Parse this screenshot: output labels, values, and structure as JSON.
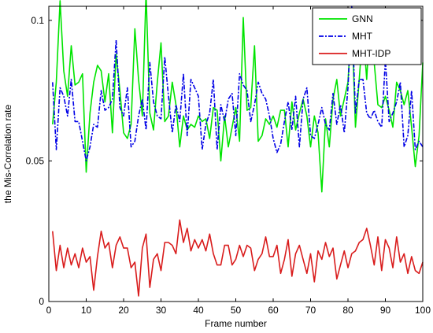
{
  "chart_data": {
    "type": "line",
    "xlabel": "Frame number",
    "ylabel": "the Mis-Correlation rate",
    "xlim": [
      0,
      100
    ],
    "ylim": [
      0,
      0.105
    ],
    "xticks": [
      0,
      10,
      20,
      30,
      40,
      50,
      60,
      70,
      80,
      90,
      100
    ],
    "xtick_labels": [
      "0",
      "10",
      "20",
      "30",
      "40",
      "50",
      "60",
      "70",
      "80",
      "90",
      "100"
    ],
    "yticks": [
      0,
      0.05,
      0.1
    ],
    "ytick_labels": [
      "0",
      "0.05",
      "0.1"
    ],
    "legend_position": "top-right",
    "grid": false,
    "x": [
      1,
      2,
      3,
      4,
      5,
      6,
      7,
      8,
      9,
      10,
      11,
      12,
      13,
      14,
      15,
      16,
      17,
      18,
      19,
      20,
      21,
      22,
      23,
      24,
      25,
      26,
      27,
      28,
      29,
      30,
      31,
      32,
      33,
      34,
      35,
      36,
      37,
      38,
      39,
      40,
      41,
      42,
      43,
      44,
      45,
      46,
      47,
      48,
      49,
      50,
      51,
      52,
      53,
      54,
      55,
      56,
      57,
      58,
      59,
      60,
      61,
      62,
      63,
      64,
      65,
      66,
      67,
      68,
      69,
      70,
      71,
      72,
      73,
      74,
      75,
      76,
      77,
      78,
      79,
      80,
      81,
      82,
      83,
      84,
      85,
      86,
      87,
      88,
      89,
      90,
      91,
      92,
      93,
      94,
      95,
      96,
      97,
      98,
      99,
      100
    ],
    "series": [
      {
        "name": "GNN",
        "color": "#00e400",
        "style": "solid",
        "values": [
          0.063,
          0.078,
          0.107,
          0.082,
          0.073,
          0.091,
          0.077,
          0.078,
          0.081,
          0.046,
          0.067,
          0.078,
          0.084,
          0.082,
          0.071,
          0.081,
          0.06,
          0.088,
          0.075,
          0.06,
          0.058,
          0.063,
          0.097,
          0.079,
          0.066,
          0.11,
          0.067,
          0.061,
          0.078,
          0.092,
          0.064,
          0.066,
          0.078,
          0.07,
          0.055,
          0.066,
          0.061,
          0.063,
          0.062,
          0.066,
          0.064,
          0.065,
          0.058,
          0.069,
          0.068,
          0.05,
          0.066,
          0.055,
          0.062,
          0.069,
          0.057,
          0.101,
          0.068,
          0.069,
          0.091,
          0.057,
          0.059,
          0.065,
          0.063,
          0.066,
          0.062,
          0.068,
          0.068,
          0.055,
          0.071,
          0.061,
          0.067,
          0.072,
          0.066,
          0.055,
          0.066,
          0.06,
          0.039,
          0.065,
          0.055,
          0.072,
          0.079,
          0.066,
          0.072,
          0.078,
          0.101,
          0.062,
          0.079,
          0.097,
          0.079,
          0.103,
          0.085,
          0.07,
          0.069,
          0.073,
          0.068,
          0.062,
          0.078,
          0.075,
          0.07,
          0.075,
          0.062,
          0.048,
          0.059,
          0.085
        ]
      },
      {
        "name": "MHT",
        "color": "#0000e6",
        "style": "dashdot",
        "values": [
          0.078,
          0.054,
          0.076,
          0.073,
          0.066,
          0.079,
          0.064,
          0.064,
          0.057,
          0.05,
          0.055,
          0.063,
          0.062,
          0.075,
          0.068,
          0.069,
          0.072,
          0.093,
          0.069,
          0.066,
          0.076,
          0.055,
          0.057,
          0.066,
          0.072,
          0.061,
          0.085,
          0.071,
          0.066,
          0.065,
          0.087,
          0.073,
          0.06,
          0.07,
          0.064,
          0.081,
          0.059,
          0.079,
          0.076,
          0.073,
          0.054,
          0.063,
          0.067,
          0.079,
          0.054,
          0.07,
          0.064,
          0.072,
          0.074,
          0.059,
          0.081,
          0.077,
          0.075,
          0.064,
          0.07,
          0.078,
          0.074,
          0.072,
          0.066,
          0.058,
          0.053,
          0.056,
          0.064,
          0.071,
          0.061,
          0.073,
          0.055,
          0.072,
          0.076,
          0.059,
          0.058,
          0.063,
          0.069,
          0.063,
          0.061,
          0.074,
          0.063,
          0.07,
          0.06,
          0.076,
          0.105,
          0.067,
          0.079,
          0.079,
          0.067,
          0.065,
          0.068,
          0.064,
          0.062,
          0.086,
          0.064,
          0.067,
          0.071,
          0.078,
          0.055,
          0.059,
          0.075,
          0.054,
          0.057,
          0.055
        ]
      },
      {
        "name": "MHT-IDP",
        "color": "#d91c1c",
        "style": "solid",
        "values": [
          0.025,
          0.011,
          0.02,
          0.012,
          0.019,
          0.013,
          0.017,
          0.012,
          0.019,
          0.014,
          0.016,
          0.004,
          0.016,
          0.025,
          0.019,
          0.021,
          0.012,
          0.02,
          0.023,
          0.019,
          0.019,
          0.012,
          0.014,
          0.002,
          0.019,
          0.024,
          0.005,
          0.015,
          0.017,
          0.011,
          0.021,
          0.021,
          0.02,
          0.017,
          0.029,
          0.021,
          0.026,
          0.018,
          0.022,
          0.019,
          0.022,
          0.018,
          0.024,
          0.017,
          0.013,
          0.013,
          0.02,
          0.02,
          0.013,
          0.015,
          0.02,
          0.016,
          0.02,
          0.019,
          0.011,
          0.015,
          0.017,
          0.023,
          0.016,
          0.016,
          0.02,
          0.01,
          0.015,
          0.022,
          0.009,
          0.017,
          0.02,
          0.015,
          0.01,
          0.017,
          0.007,
          0.018,
          0.015,
          0.021,
          0.016,
          0.019,
          0.008,
          0.013,
          0.018,
          0.012,
          0.017,
          0.018,
          0.021,
          0.022,
          0.026,
          0.02,
          0.013,
          0.023,
          0.011,
          0.022,
          0.019,
          0.012,
          0.023,
          0.014,
          0.017,
          0.01,
          0.016,
          0.011,
          0.01,
          0.014
        ]
      }
    ]
  }
}
